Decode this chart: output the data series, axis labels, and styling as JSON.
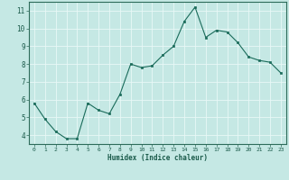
{
  "x": [
    0,
    1,
    2,
    3,
    4,
    5,
    6,
    7,
    8,
    9,
    10,
    11,
    12,
    13,
    14,
    15,
    16,
    17,
    18,
    19,
    20,
    21,
    22,
    23
  ],
  "y": [
    5.8,
    4.9,
    4.2,
    3.8,
    3.8,
    5.8,
    5.4,
    5.2,
    6.3,
    8.0,
    7.8,
    7.9,
    8.5,
    9.0,
    10.4,
    11.2,
    9.5,
    9.9,
    9.8,
    9.2,
    8.4,
    8.2,
    8.1,
    7.5
  ],
  "xlabel": "Humidex (Indice chaleur)",
  "line_color": "#1a6b5a",
  "marker_color": "#1a6b5a",
  "bg_color": "#c5e8e4",
  "grid_color": "#e8f8f7",
  "axis_color": "#2d6b5a",
  "text_color": "#1a5a4a",
  "xlim": [
    -0.5,
    23.5
  ],
  "ylim": [
    3.5,
    11.5
  ],
  "yticks": [
    4,
    5,
    6,
    7,
    8,
    9,
    10,
    11
  ],
  "xticks": [
    0,
    1,
    2,
    3,
    4,
    5,
    6,
    7,
    8,
    9,
    10,
    11,
    12,
    13,
    14,
    15,
    16,
    17,
    18,
    19,
    20,
    21,
    22,
    23
  ]
}
